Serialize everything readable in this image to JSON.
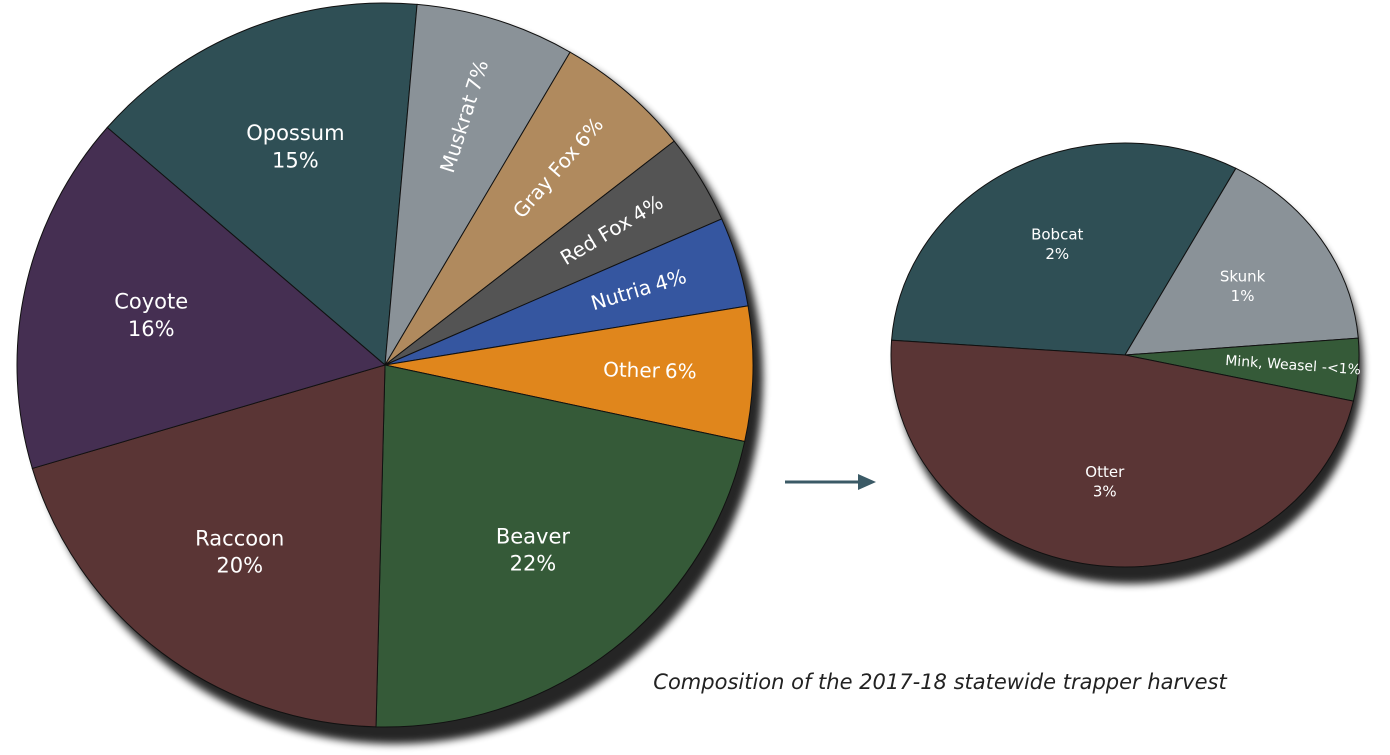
{
  "chart_data": [
    {
      "type": "pie",
      "title": "Composition of the 2017-18 statewide trapper harvest",
      "categories": [
        "Opossum",
        "Muskrat",
        "Gray Fox",
        "Red Fox",
        "Nutria",
        "Other",
        "Beaver",
        "Raccoon",
        "Coyote"
      ],
      "values": [
        15,
        7,
        6,
        4,
        4,
        6,
        22,
        20,
        16
      ],
      "value_labels": [
        "15%",
        "7%",
        "6%",
        "4%",
        "4%",
        "6%",
        "22%",
        "20%",
        "16%"
      ],
      "colors": [
        "#2f4f55",
        "#8a9298",
        "#b08a5e",
        "#545454",
        "#3556a0",
        "#e0861c",
        "#355a38",
        "#5a3535",
        "#452f52"
      ]
    },
    {
      "type": "pie",
      "categories": [
        "Bobcat",
        "Skunk",
        "Mink, Weasel",
        "Otter"
      ],
      "values": [
        2,
        1,
        0.3,
        3
      ],
      "value_labels": [
        "2%",
        "1%",
        "-<1%",
        "3%"
      ],
      "colors": [
        "#2f4f55",
        "#8a9298",
        "#355a38",
        "#5a3535"
      ]
    }
  ]
}
